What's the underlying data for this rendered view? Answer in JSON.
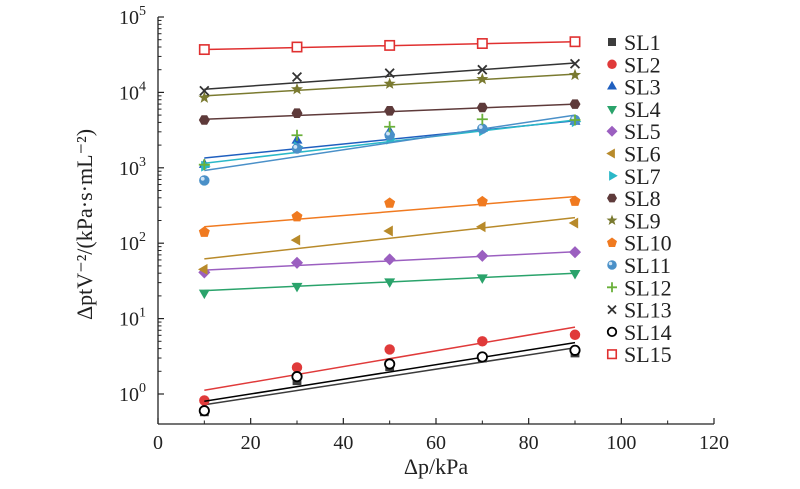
{
  "chart_data": {
    "type": "scatter",
    "xlabel": "Δp/kPa",
    "ylabel": "ΔptV⁻²/(kPa·s·mL⁻²)",
    "xlim": [
      0,
      120
    ],
    "ylim": [
      0.4,
      100000
    ],
    "yscale": "log",
    "xticks": [
      0,
      20,
      40,
      60,
      80,
      100,
      120
    ],
    "xtick_labels": [
      "0",
      "20",
      "40",
      "60",
      "80",
      "100",
      "120"
    ],
    "yticks": [
      1,
      10,
      100,
      1000,
      10000,
      100000
    ],
    "ytick_labels": [
      {
        "base": "10",
        "exp": "0"
      },
      {
        "base": "10",
        "exp": "1"
      },
      {
        "base": "10",
        "exp": "2"
      },
      {
        "base": "10",
        "exp": "3"
      },
      {
        "base": "10",
        "exp": "4"
      },
      {
        "base": "10",
        "exp": "5"
      }
    ],
    "x": [
      10,
      30,
      50,
      70,
      90
    ],
    "legend_position": "right",
    "series": [
      {
        "name": "SL1",
        "marker": "square",
        "color": "#3c3c3c",
        "values": [
          0.58,
          1.5,
          2.3,
          3.0,
          3.5
        ],
        "fit": [
          0.72,
          4.1
        ]
      },
      {
        "name": "SL2",
        "marker": "circle",
        "color": "#e03a3a",
        "values": [
          0.82,
          2.25,
          3.9,
          5.0,
          6.1
        ],
        "fit": [
          1.12,
          7.7
        ]
      },
      {
        "name": "SL3",
        "marker": "triangle-up",
        "color": "#1f5fbf",
        "values": [
          1100,
          2300,
          3000,
          3300,
          4100
        ],
        "fit": [
          1350,
          4200
        ]
      },
      {
        "name": "SL4",
        "marker": "triangle-down",
        "color": "#2aa36b",
        "values": [
          22,
          27,
          31,
          35,
          40
        ],
        "fit": [
          23.5,
          40
        ]
      },
      {
        "name": "SL5",
        "marker": "diamond",
        "color": "#9b5fc0",
        "values": [
          41,
          55,
          61,
          68,
          76
        ],
        "fit": [
          44,
          77
        ]
      },
      {
        "name": "SL6",
        "marker": "triangle-left",
        "color": "#b88a2a",
        "values": [
          45,
          110,
          145,
          165,
          185
        ],
        "fit": [
          62,
          218
        ]
      },
      {
        "name": "SL7",
        "marker": "triangle-right",
        "color": "#2ab8c8",
        "values": [
          1050,
          1900,
          2400,
          3100,
          4100
        ],
        "fit": [
          1150,
          4300
        ]
      },
      {
        "name": "SL8",
        "marker": "hexagon",
        "color": "#5e3a3a",
        "values": [
          4300,
          5300,
          5700,
          6300,
          7000
        ],
        "fit": [
          4400,
          7000
        ]
      },
      {
        "name": "SL9",
        "marker": "star",
        "color": "#7a7a30",
        "values": [
          8500,
          11000,
          13000,
          15000,
          17000
        ],
        "fit": [
          9000,
          17500
        ]
      },
      {
        "name": "SL10",
        "marker": "pentagon",
        "color": "#f07a20",
        "values": [
          140,
          225,
          340,
          355,
          360
        ],
        "fit": [
          165,
          415
        ]
      },
      {
        "name": "SL11",
        "marker": "sphere",
        "color": "#4a90c8",
        "values": [
          680,
          1800,
          2700,
          3300,
          4300
        ],
        "fit": [
          920,
          5000
        ]
      },
      {
        "name": "SL12",
        "marker": "plus",
        "color": "#6ab03a",
        "values": [
          1100,
          2700,
          3500,
          4400,
          4300
        ],
        "fit": null
      },
      {
        "name": "SL13",
        "marker": "x",
        "color": "#333333",
        "values": [
          10500,
          16000,
          18000,
          20000,
          24000
        ],
        "fit": [
          11000,
          24500
        ]
      },
      {
        "name": "SL14",
        "marker": "open-circle",
        "color": "#000000",
        "values": [
          0.6,
          1.7,
          2.5,
          3.1,
          3.8
        ],
        "fit": [
          0.8,
          4.8
        ]
      },
      {
        "name": "SL15",
        "marker": "open-square",
        "color": "#e03030",
        "values": [
          37000,
          40000,
          42000,
          44500,
          47000
        ],
        "fit": [
          37000,
          47000
        ]
      }
    ]
  }
}
